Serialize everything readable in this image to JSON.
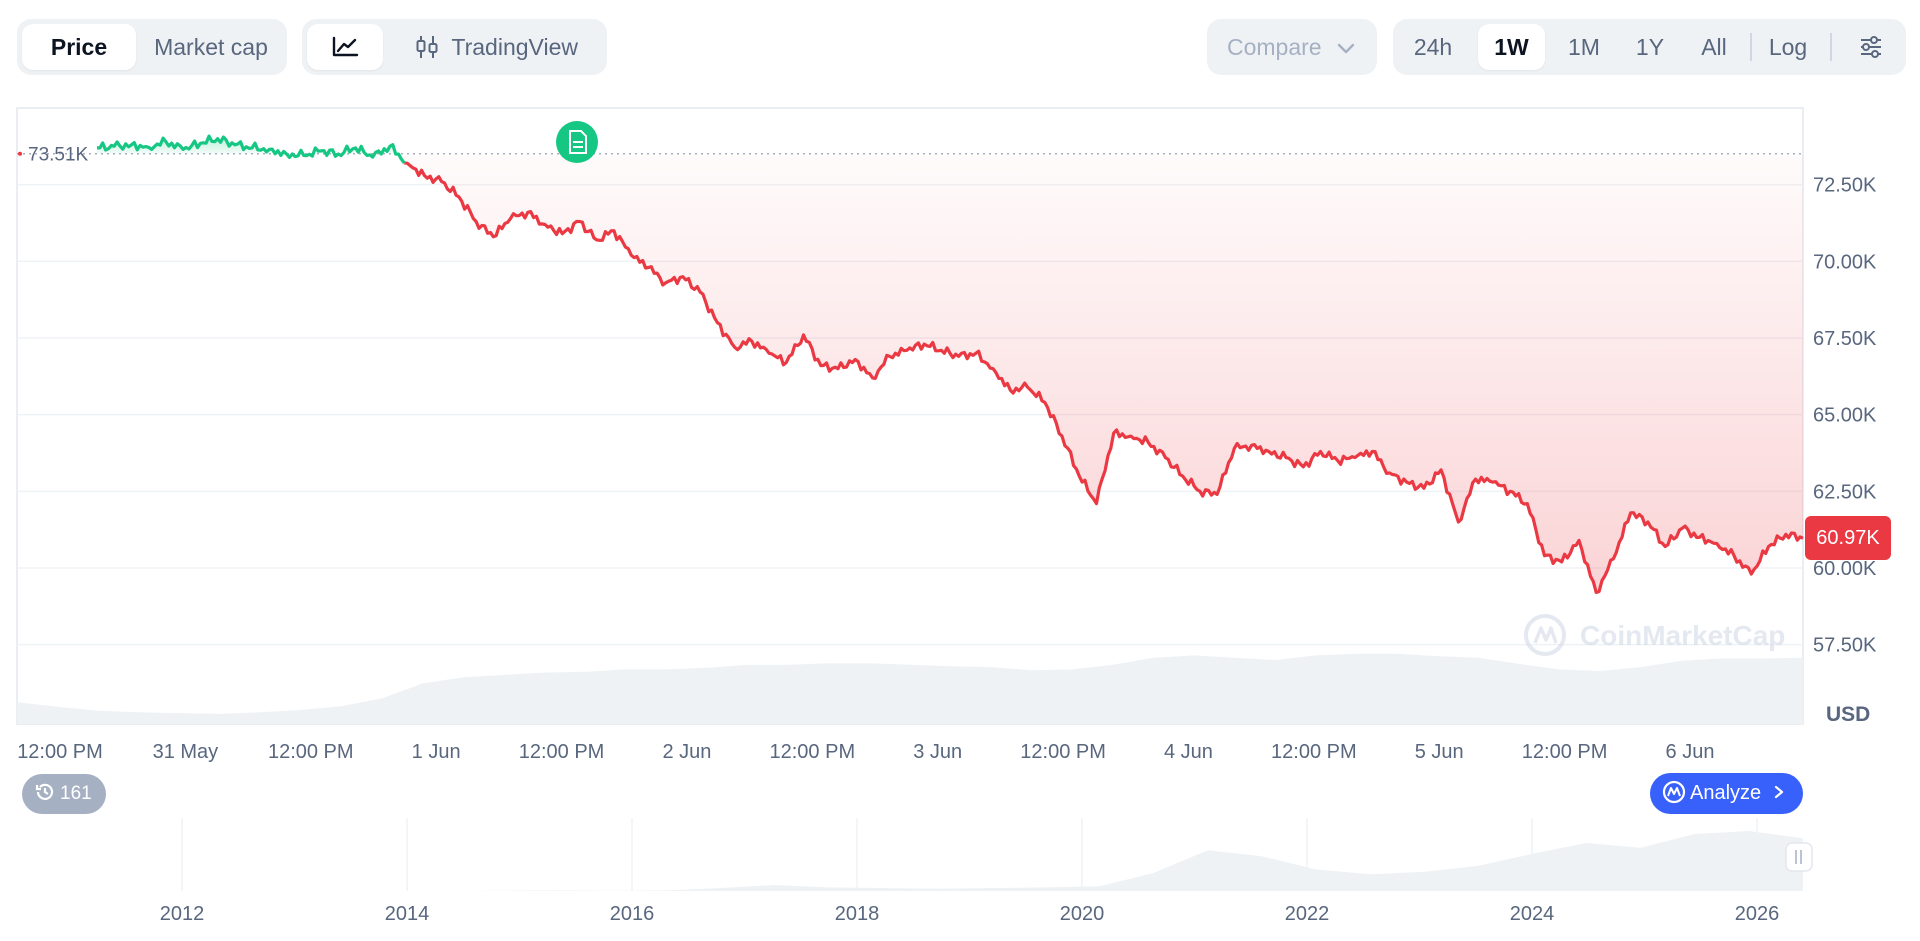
{
  "toolbar": {
    "price_label": "Price",
    "market_cap_label": "Market cap",
    "line_chart_icon": "line-chart-icon",
    "tradingview_label": "TradingView",
    "tradingview_icon": "candlestick-icon",
    "compare_label": "Compare",
    "ranges": [
      "24h",
      "1W",
      "1M",
      "1Y",
      "All"
    ],
    "active_range": "1W",
    "log_label": "Log",
    "settings_icon": "sliders-icon"
  },
  "colors": {
    "up": "#16c784",
    "down": "#ea3943",
    "accent": "#3861fb",
    "muted": "#58667e"
  },
  "chart": {
    "reference_label": "73.51K",
    "current_price_label": "60.97K",
    "currency_label": "USD",
    "watermark": "CoinMarketCap",
    "history_count": "161",
    "analyze_label": "Analyze",
    "news_marker_icon": "document-icon"
  },
  "chart_data": [
    {
      "type": "line",
      "ylabel": "USD",
      "ylim": [
        55500,
        75000
      ],
      "y_ticks": [
        57500,
        60000,
        62500,
        65000,
        67500,
        70000,
        72500
      ],
      "y_tick_labels": [
        "57.50K",
        "60.00K",
        "62.50K",
        "65.00K",
        "67.50K",
        "70.00K",
        "72.50K"
      ],
      "x_tick_labels": [
        "12:00 PM",
        "31 May",
        "12:00 PM",
        "1 Jun",
        "12:00 PM",
        "2 Jun",
        "12:00 PM",
        "3 Jun",
        "12:00 PM",
        "4 Jun",
        "12:00 PM",
        "5 Jun",
        "12:00 PM",
        "6 Jun"
      ],
      "reference_value": 73510,
      "current_value": 60970,
      "series": [
        {
          "color_above": "#16c784",
          "color_below": "#ea3943",
          "x_start_index": 0.44,
          "values": [
            73700,
            73750,
            73800,
            73720,
            73900,
            73650,
            73850,
            74000,
            73800,
            73700,
            73650,
            73500,
            73450,
            73600,
            73500,
            73700,
            73400,
            73750,
            73200,
            72800,
            72600,
            72100,
            71300,
            70800,
            71400,
            71600,
            71200,
            70900,
            71300,
            70700,
            71000,
            70200,
            69800,
            69300,
            69500,
            69000,
            68000,
            67200,
            67400,
            67000,
            66700,
            67600,
            66600,
            66500,
            66800,
            66200,
            66900,
            67100,
            67300,
            67100,
            66900,
            67000,
            66500,
            65800,
            65900,
            65400,
            64300,
            63000,
            62100,
            64400,
            64300,
            64100,
            63600,
            63000,
            62500,
            62400,
            63900,
            64000,
            63800,
            63600,
            63300,
            63800,
            63500,
            63600,
            63800,
            63100,
            62800,
            62600,
            63200,
            61500,
            62900,
            62800,
            62500,
            62100,
            60400,
            60200,
            60900,
            59200,
            60300,
            61800,
            61500,
            60700,
            61300,
            61000,
            60800,
            60400,
            59800,
            60700,
            61100,
            60970
          ]
        }
      ],
      "volume_series": [
        0.28,
        0.22,
        0.17,
        0.15,
        0.14,
        0.13,
        0.15,
        0.18,
        0.23,
        0.33,
        0.52,
        0.6,
        0.63,
        0.66,
        0.67,
        0.7,
        0.7,
        0.72,
        0.76,
        0.76,
        0.78,
        0.78,
        0.76,
        0.74,
        0.73,
        0.69,
        0.7,
        0.76,
        0.85,
        0.88,
        0.85,
        0.82,
        0.88,
        0.9,
        0.9,
        0.87,
        0.85,
        0.77,
        0.7,
        0.68,
        0.73,
        0.81,
        0.84,
        0.84,
        0.85
      ]
    },
    {
      "type": "area",
      "x_tick_labels": [
        "2012",
        "2014",
        "2016",
        "2018",
        "2020",
        "2022",
        "2024",
        "2026"
      ],
      "values": [
        0,
        0,
        0,
        0,
        0,
        0,
        0,
        0,
        0,
        0.005,
        0.01,
        0.005,
        0.01,
        0.05,
        0.1,
        0.06,
        0.05,
        0.04,
        0.05,
        0.06,
        0.08,
        0.3,
        0.68,
        0.58,
        0.36,
        0.28,
        0.32,
        0.42,
        0.62,
        0.8,
        0.72,
        0.95,
        1.0,
        0.88
      ]
    }
  ]
}
